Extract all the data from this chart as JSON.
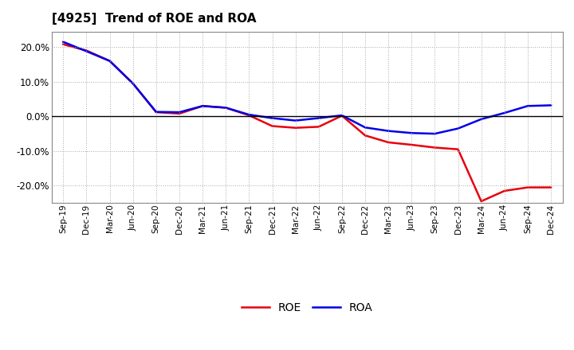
{
  "title": "[4925]  Trend of ROE and ROA",
  "x_labels": [
    "Sep-19",
    "Dec-19",
    "Mar-20",
    "Jun-20",
    "Sep-20",
    "Dec-20",
    "Mar-21",
    "Jun-21",
    "Sep-21",
    "Dec-21",
    "Mar-22",
    "Jun-22",
    "Sep-22",
    "Dec-22",
    "Mar-23",
    "Jun-23",
    "Sep-23",
    "Dec-23",
    "Mar-24",
    "Jun-24",
    "Sep-24",
    "Dec-24"
  ],
  "roe": [
    0.208,
    0.19,
    0.16,
    0.095,
    0.012,
    0.008,
    0.03,
    0.025,
    0.003,
    -0.028,
    -0.033,
    -0.03,
    0.002,
    -0.055,
    -0.075,
    -0.082,
    -0.09,
    -0.095,
    -0.245,
    -0.215,
    -0.205,
    -0.205
  ],
  "roa": [
    0.215,
    0.188,
    0.16,
    0.095,
    0.013,
    0.012,
    0.03,
    0.025,
    0.005,
    -0.005,
    -0.012,
    -0.005,
    0.003,
    -0.032,
    -0.042,
    -0.048,
    -0.05,
    -0.035,
    -0.008,
    0.01,
    0.03,
    0.032
  ],
  "roe_color": "#e8000d",
  "roa_color": "#0000e8",
  "background_color": "#ffffff",
  "grid_color": "#aaaaaa",
  "ylim": [
    -0.25,
    0.245
  ],
  "yticks": [
    -0.2,
    -0.1,
    0.0,
    0.1,
    0.2
  ]
}
